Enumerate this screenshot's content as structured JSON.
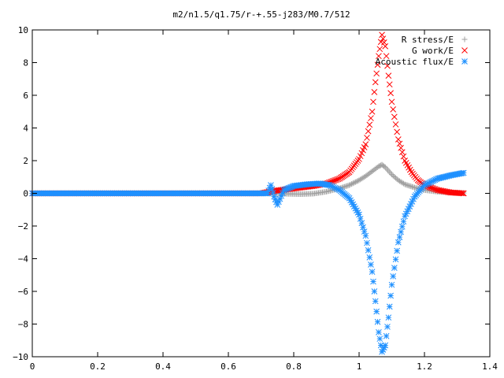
{
  "chart_data": {
    "type": "scatter",
    "title": "m2/n1.5/q1.75/r-+.55-j283/M0.7/512",
    "xlabel": "",
    "ylabel": "",
    "xlim": [
      0,
      1.4
    ],
    "ylim": [
      -10,
      10
    ],
    "x_ticks": [
      "0",
      "0.2",
      "0.4",
      "0.6",
      "0.8",
      "1",
      "1.2",
      "1.4"
    ],
    "y_ticks": [
      "10",
      "8",
      "6",
      "4",
      "2",
      "0",
      "−2",
      "−4",
      "−6",
      "−8",
      "−10"
    ],
    "grid": false,
    "legend_position": "top-right",
    "series": [
      {
        "name": "R stress/E",
        "marker": "+",
        "color": "#a0a0a0",
        "x": [
          0.0,
          0.1,
          0.2,
          0.3,
          0.4,
          0.5,
          0.6,
          0.7,
          0.74,
          0.78,
          0.82,
          0.86,
          0.9,
          0.94,
          0.97,
          1.0,
          1.02,
          1.04,
          1.06,
          1.07,
          1.08,
          1.1,
          1.12,
          1.14,
          1.17,
          1.2,
          1.24,
          1.28,
          1.32
        ],
        "y": [
          0,
          0,
          0,
          0,
          0,
          0,
          0,
          0,
          -0.02,
          -0.03,
          -0.05,
          -0.02,
          0.1,
          0.3,
          0.5,
          0.8,
          1.05,
          1.35,
          1.65,
          1.75,
          1.6,
          1.15,
          0.8,
          0.55,
          0.35,
          0.2,
          0.1,
          0.05,
          0.02
        ]
      },
      {
        "name": "G work/E",
        "marker": "x",
        "color": "#ff0000",
        "x": [
          0.0,
          0.1,
          0.2,
          0.3,
          0.4,
          0.5,
          0.6,
          0.7,
          0.74,
          0.78,
          0.82,
          0.86,
          0.9,
          0.94,
          0.97,
          1.0,
          1.02,
          1.04,
          1.05,
          1.06,
          1.07,
          1.08,
          1.09,
          1.1,
          1.12,
          1.14,
          1.16,
          1.18,
          1.2,
          1.24,
          1.28,
          1.32
        ],
        "y": [
          0,
          0,
          0,
          0,
          0,
          0,
          0,
          0,
          0.15,
          0.25,
          0.35,
          0.45,
          0.6,
          0.9,
          1.3,
          2.1,
          3.0,
          5.0,
          6.8,
          8.4,
          9.7,
          9.0,
          7.2,
          5.6,
          3.3,
          2.0,
          1.3,
          0.8,
          0.5,
          0.2,
          0.05,
          0.0
        ]
      },
      {
        "name": "Acoustic flux/E",
        "marker": "*",
        "color": "#1e90ff",
        "x": [
          0.0,
          0.1,
          0.2,
          0.3,
          0.4,
          0.5,
          0.6,
          0.7,
          0.72,
          0.73,
          0.74,
          0.75,
          0.77,
          0.8,
          0.84,
          0.88,
          0.91,
          0.94,
          0.97,
          1.0,
          1.02,
          1.04,
          1.05,
          1.06,
          1.07,
          1.08,
          1.09,
          1.1,
          1.12,
          1.14,
          1.17,
          1.2,
          1.24,
          1.28,
          1.32
        ],
        "y": [
          0,
          0,
          0,
          0,
          0,
          0,
          0,
          0,
          0,
          0.5,
          -0.2,
          -0.7,
          0.2,
          0.45,
          0.55,
          0.6,
          0.5,
          0.2,
          -0.3,
          -1.3,
          -2.6,
          -4.8,
          -6.6,
          -8.5,
          -9.7,
          -9.3,
          -7.6,
          -5.6,
          -3.0,
          -1.4,
          -0.2,
          0.5,
          0.9,
          1.1,
          1.25
        ]
      }
    ]
  }
}
